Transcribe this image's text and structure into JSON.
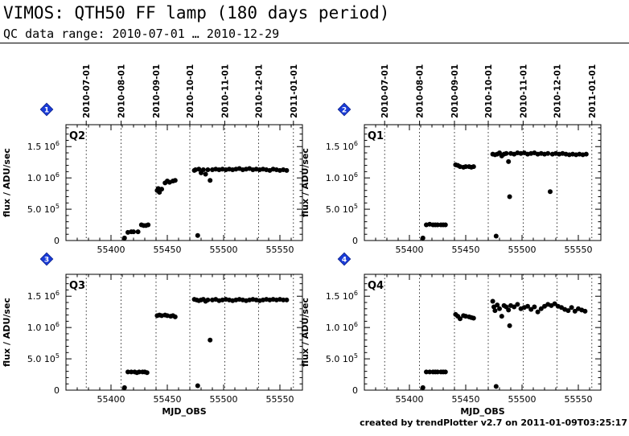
{
  "header": {
    "title": "VIMOS: QTH50 FF lamp (180 days period)",
    "subtitle": "QC data range: 2010-07-01 … 2010-12-29"
  },
  "footer": {
    "text": "created by trendPlotter v2.7 on 2011-01-09T03:25:17"
  },
  "colors": {
    "marker": "#000000",
    "badge": "#1a3cd8",
    "badge_text": "#ffffff"
  },
  "chart_data": {
    "type": "scatter",
    "xlabel": "MJD_OBS",
    "ylabel": "flux / ADU/sec",
    "xlim": [
      55360,
      55570
    ],
    "ylim": [
      0,
      1850000
    ],
    "xticks": [
      55400,
      55450,
      55500,
      55550
    ],
    "yticks": [
      {
        "value": 0,
        "base": "0",
        "exp": ""
      },
      {
        "value": 500000,
        "base": "5.0 10",
        "exp": "5"
      },
      {
        "value": 1000000,
        "base": "1.0 10",
        "exp": "6"
      },
      {
        "value": 1500000,
        "base": "1.5 10",
        "exp": "6"
      }
    ],
    "date_marks": [
      {
        "label": "2010-07-01",
        "mjd": 55378
      },
      {
        "label": "2010-08-01",
        "mjd": 55409
      },
      {
        "label": "2010-09-01",
        "mjd": 55440
      },
      {
        "label": "2010-10-01",
        "mjd": 55470
      },
      {
        "label": "2010-11-01",
        "mjd": 55501
      },
      {
        "label": "2010-12-01",
        "mjd": 55531
      },
      {
        "label": "2011-01-01",
        "mjd": 55562
      }
    ],
    "panels": [
      {
        "badge": "1",
        "name": "Q2",
        "points": [
          [
            55412,
            40000
          ],
          [
            55415,
            130000
          ],
          [
            55418,
            140000
          ],
          [
            55420,
            140000
          ],
          [
            55424,
            140000
          ],
          [
            55427,
            250000
          ],
          [
            55429,
            240000
          ],
          [
            55431,
            240000
          ],
          [
            55433,
            250000
          ],
          [
            55441,
            800000
          ],
          [
            55442,
            830000
          ],
          [
            55443,
            770000
          ],
          [
            55445,
            820000
          ],
          [
            55448,
            920000
          ],
          [
            55450,
            950000
          ],
          [
            55452,
            930000
          ],
          [
            55455,
            950000
          ],
          [
            55457,
            960000
          ],
          [
            55474,
            1120000
          ],
          [
            55475,
            1130000
          ],
          [
            55477,
            80000
          ],
          [
            55478,
            1140000
          ],
          [
            55480,
            1080000
          ],
          [
            55482,
            1130000
          ],
          [
            55484,
            1060000
          ],
          [
            55486,
            1130000
          ],
          [
            55488,
            960000
          ],
          [
            55490,
            1130000
          ],
          [
            55493,
            1140000
          ],
          [
            55496,
            1130000
          ],
          [
            55499,
            1140000
          ],
          [
            55502,
            1130000
          ],
          [
            55505,
            1140000
          ],
          [
            55508,
            1130000
          ],
          [
            55511,
            1140000
          ],
          [
            55514,
            1150000
          ],
          [
            55517,
            1130000
          ],
          [
            55520,
            1140000
          ],
          [
            55523,
            1150000
          ],
          [
            55526,
            1130000
          ],
          [
            55529,
            1140000
          ],
          [
            55532,
            1130000
          ],
          [
            55535,
            1140000
          ],
          [
            55538,
            1130000
          ],
          [
            55541,
            1120000
          ],
          [
            55544,
            1140000
          ],
          [
            55547,
            1130000
          ],
          [
            55550,
            1120000
          ],
          [
            55553,
            1130000
          ],
          [
            55556,
            1120000
          ]
        ]
      },
      {
        "badge": "2",
        "name": "Q1",
        "points": [
          [
            55412,
            40000
          ],
          [
            55415,
            250000
          ],
          [
            55418,
            260000
          ],
          [
            55421,
            250000
          ],
          [
            55423,
            250000
          ],
          [
            55425,
            250000
          ],
          [
            55428,
            250000
          ],
          [
            55430,
            250000
          ],
          [
            55432,
            250000
          ],
          [
            55441,
            1210000
          ],
          [
            55443,
            1200000
          ],
          [
            55445,
            1180000
          ],
          [
            55448,
            1170000
          ],
          [
            55450,
            1180000
          ],
          [
            55453,
            1180000
          ],
          [
            55455,
            1170000
          ],
          [
            55457,
            1180000
          ],
          [
            55474,
            1380000
          ],
          [
            55476,
            1370000
          ],
          [
            55477,
            70000
          ],
          [
            55478,
            1380000
          ],
          [
            55480,
            1400000
          ],
          [
            55482,
            1350000
          ],
          [
            55484,
            1380000
          ],
          [
            55486,
            1390000
          ],
          [
            55488,
            1260000
          ],
          [
            55489,
            700000
          ],
          [
            55490,
            1390000
          ],
          [
            55493,
            1380000
          ],
          [
            55496,
            1400000
          ],
          [
            55499,
            1390000
          ],
          [
            55502,
            1400000
          ],
          [
            55505,
            1380000
          ],
          [
            55508,
            1390000
          ],
          [
            55511,
            1400000
          ],
          [
            55514,
            1380000
          ],
          [
            55517,
            1390000
          ],
          [
            55520,
            1380000
          ],
          [
            55523,
            1390000
          ],
          [
            55525,
            780000
          ],
          [
            55527,
            1380000
          ],
          [
            55530,
            1390000
          ],
          [
            55533,
            1380000
          ],
          [
            55536,
            1390000
          ],
          [
            55539,
            1380000
          ],
          [
            55542,
            1370000
          ],
          [
            55545,
            1380000
          ],
          [
            55548,
            1370000
          ],
          [
            55551,
            1380000
          ],
          [
            55554,
            1370000
          ],
          [
            55557,
            1380000
          ]
        ]
      },
      {
        "badge": "3",
        "name": "Q3",
        "points": [
          [
            55412,
            40000
          ],
          [
            55415,
            290000
          ],
          [
            55418,
            290000
          ],
          [
            55421,
            290000
          ],
          [
            55423,
            280000
          ],
          [
            55425,
            290000
          ],
          [
            55428,
            290000
          ],
          [
            55430,
            290000
          ],
          [
            55432,
            280000
          ],
          [
            55441,
            1190000
          ],
          [
            55443,
            1200000
          ],
          [
            55445,
            1190000
          ],
          [
            55448,
            1200000
          ],
          [
            55450,
            1190000
          ],
          [
            55453,
            1180000
          ],
          [
            55455,
            1190000
          ],
          [
            55457,
            1170000
          ],
          [
            55474,
            1450000
          ],
          [
            55476,
            1440000
          ],
          [
            55477,
            70000
          ],
          [
            55478,
            1430000
          ],
          [
            55480,
            1440000
          ],
          [
            55482,
            1450000
          ],
          [
            55484,
            1420000
          ],
          [
            55486,
            1440000
          ],
          [
            55488,
            800000
          ],
          [
            55490,
            1440000
          ],
          [
            55493,
            1450000
          ],
          [
            55496,
            1430000
          ],
          [
            55499,
            1440000
          ],
          [
            55502,
            1450000
          ],
          [
            55505,
            1440000
          ],
          [
            55508,
            1430000
          ],
          [
            55511,
            1440000
          ],
          [
            55514,
            1450000
          ],
          [
            55517,
            1440000
          ],
          [
            55520,
            1430000
          ],
          [
            55523,
            1440000
          ],
          [
            55526,
            1450000
          ],
          [
            55529,
            1440000
          ],
          [
            55532,
            1430000
          ],
          [
            55535,
            1440000
          ],
          [
            55538,
            1450000
          ],
          [
            55541,
            1440000
          ],
          [
            55544,
            1450000
          ],
          [
            55547,
            1440000
          ],
          [
            55550,
            1450000
          ],
          [
            55553,
            1440000
          ],
          [
            55556,
            1440000
          ]
        ]
      },
      {
        "badge": "4",
        "name": "Q4",
        "points": [
          [
            55412,
            40000
          ],
          [
            55415,
            290000
          ],
          [
            55418,
            290000
          ],
          [
            55421,
            290000
          ],
          [
            55423,
            290000
          ],
          [
            55425,
            290000
          ],
          [
            55428,
            290000
          ],
          [
            55430,
            290000
          ],
          [
            55432,
            290000
          ],
          [
            55441,
            1210000
          ],
          [
            55443,
            1180000
          ],
          [
            55445,
            1140000
          ],
          [
            55448,
            1190000
          ],
          [
            55450,
            1180000
          ],
          [
            55453,
            1170000
          ],
          [
            55455,
            1160000
          ],
          [
            55457,
            1150000
          ],
          [
            55474,
            1420000
          ],
          [
            55475,
            1330000
          ],
          [
            55476,
            1270000
          ],
          [
            55477,
            60000
          ],
          [
            55478,
            1360000
          ],
          [
            55480,
            1300000
          ],
          [
            55482,
            1180000
          ],
          [
            55484,
            1350000
          ],
          [
            55486,
            1330000
          ],
          [
            55488,
            1280000
          ],
          [
            55489,
            1030000
          ],
          [
            55490,
            1350000
          ],
          [
            55493,
            1330000
          ],
          [
            55496,
            1370000
          ],
          [
            55499,
            1300000
          ],
          [
            55502,
            1320000
          ],
          [
            55505,
            1340000
          ],
          [
            55508,
            1290000
          ],
          [
            55511,
            1330000
          ],
          [
            55514,
            1250000
          ],
          [
            55517,
            1300000
          ],
          [
            55520,
            1340000
          ],
          [
            55523,
            1370000
          ],
          [
            55526,
            1350000
          ],
          [
            55529,
            1380000
          ],
          [
            55532,
            1340000
          ],
          [
            55535,
            1320000
          ],
          [
            55538,
            1290000
          ],
          [
            55541,
            1270000
          ],
          [
            55544,
            1320000
          ],
          [
            55547,
            1260000
          ],
          [
            55550,
            1300000
          ],
          [
            55553,
            1280000
          ],
          [
            55556,
            1260000
          ]
        ]
      }
    ]
  }
}
